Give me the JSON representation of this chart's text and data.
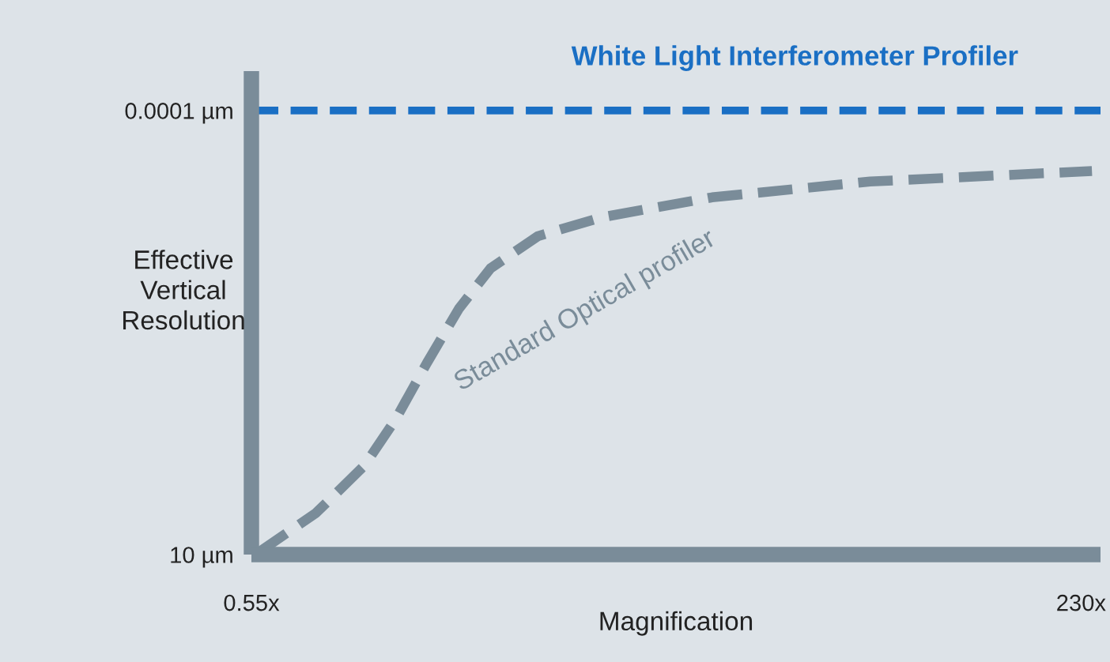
{
  "chart_data": {
    "type": "line",
    "xlabel": "Magnification",
    "ylabel": "Effective\nVertical\nResolution",
    "log": "xy",
    "xlim": [
      0.55,
      265
    ],
    "xticks": [
      {
        "value": 0.55,
        "label": "0.55x"
      },
      {
        "value": 230,
        "label": "230x"
      }
    ],
    "ylim": [
      10,
      3.6e-05
    ],
    "yticks": [
      {
        "value": 10,
        "label": "10 µm"
      },
      {
        "value": 0.0001,
        "label": "0.0001 µm"
      }
    ],
    "grid": false,
    "line_style": "dashed",
    "marker": "none",
    "series": [
      {
        "name": "Standard Optical profiler",
        "color": "#7a8c99",
        "x": [
          0.576,
          0.88,
          1.25,
          1.57,
          1.97,
          2.49,
          3.13,
          4.42,
          7.0,
          15.7,
          49.6,
          249
        ],
        "values": [
          9.6,
          3.4,
          1.0,
          0.3,
          0.07,
          0.017,
          0.006,
          0.0026,
          0.0016,
          0.00095,
          0.00063,
          0.00048
        ]
      }
    ],
    "ref_lines": [
      {
        "axis": "y",
        "value": 0.0001,
        "label": "White Light Interferometer Profiler",
        "color": "#1a6fc4",
        "line_style": "dashed"
      }
    ]
  }
}
